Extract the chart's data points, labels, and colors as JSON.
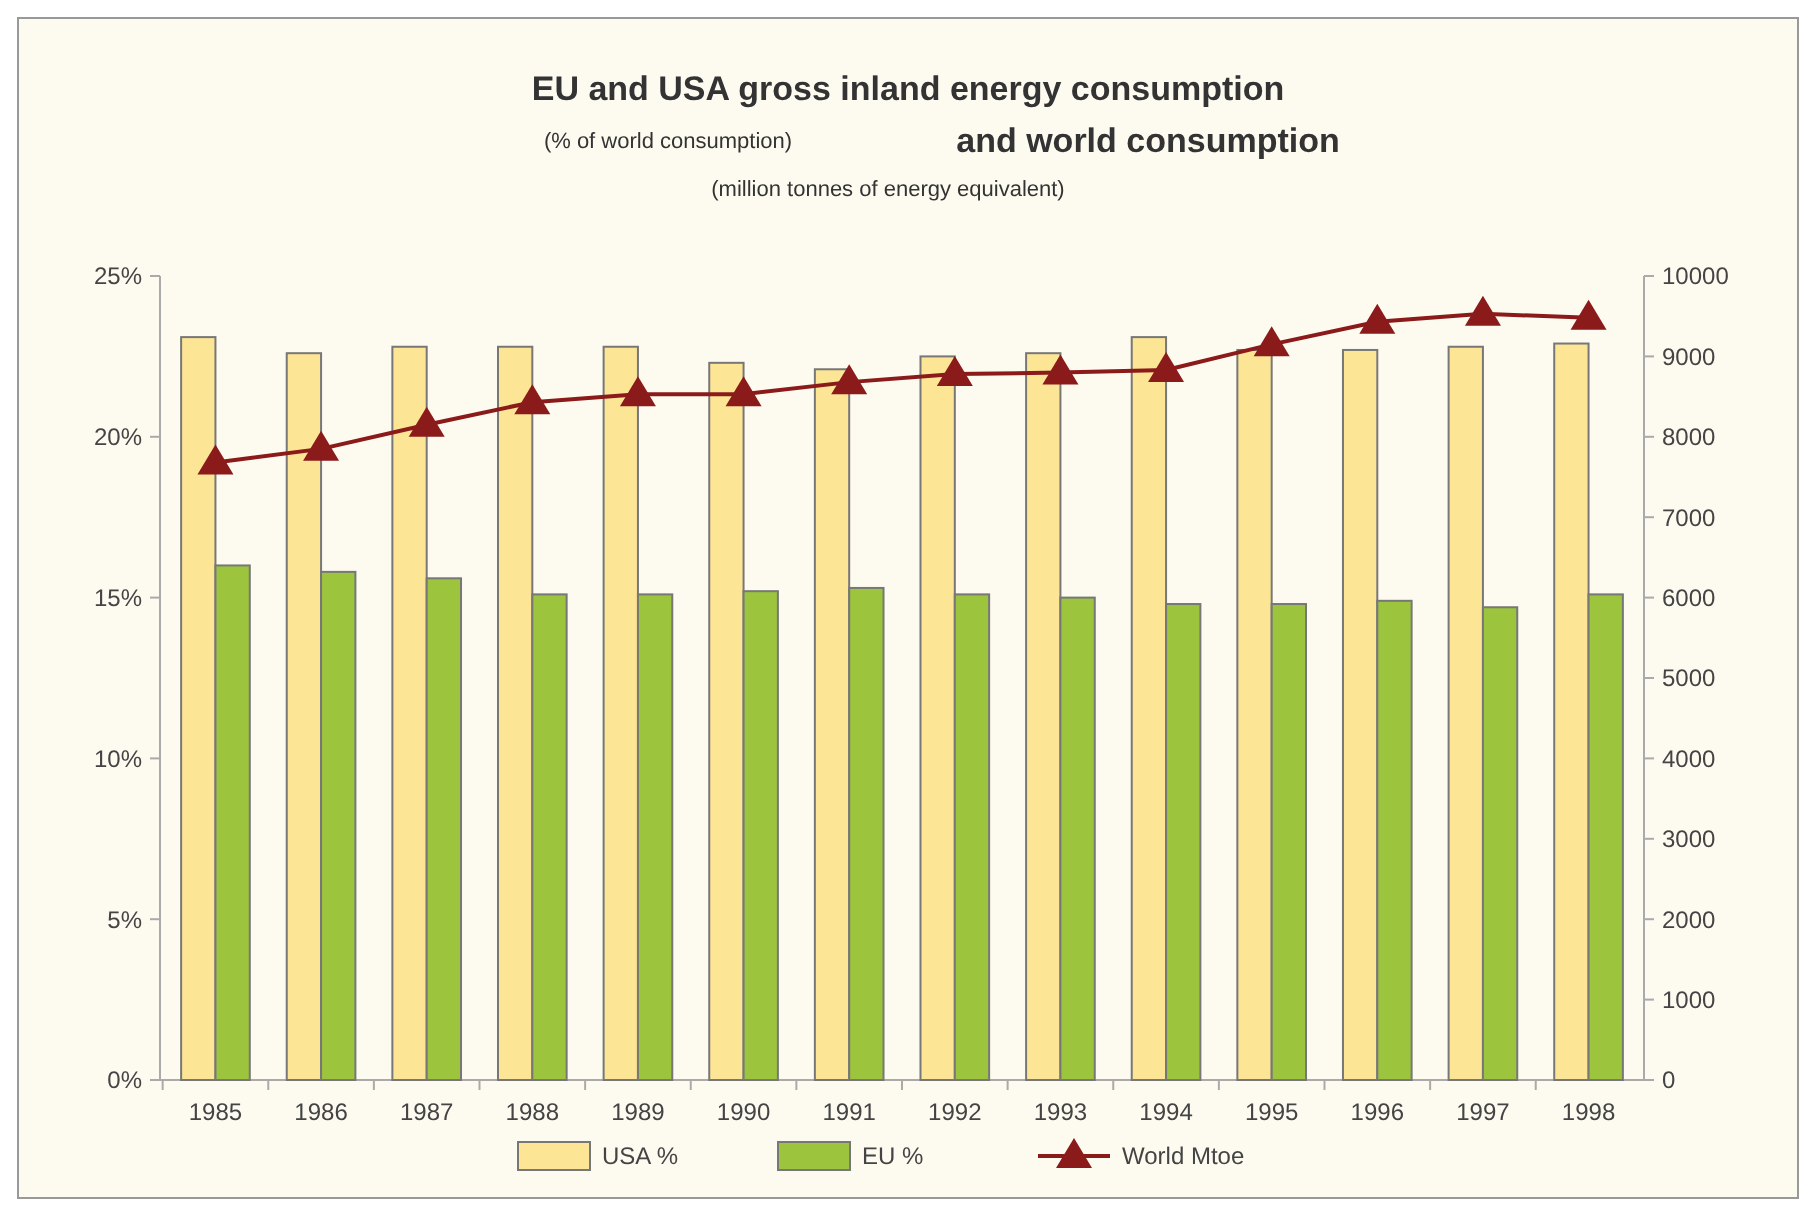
{
  "chart_data": {
    "type": "bar",
    "title": "EU and USA gross inland energy consumption",
    "subtitle": [
      "(% of world consumption)",
      "and world consumption",
      "(million tonnes of energy equivalent)"
    ],
    "categories": [
      "1985",
      "1986",
      "1987",
      "1988",
      "1989",
      "1990",
      "1991",
      "1992",
      "1993",
      "1994",
      "1995",
      "1996",
      "1997",
      "1998"
    ],
    "series": [
      {
        "name": "USA %",
        "color": "#fde596",
        "values": [
          23.1,
          22.6,
          22.8,
          22.8,
          22.8,
          22.3,
          22.1,
          22.5,
          22.6,
          23.1,
          22.7,
          22.7,
          22.8,
          22.9
        ]
      },
      {
        "name": "EU %",
        "color": "#9cc43c",
        "values": [
          16.0,
          15.8,
          15.6,
          15.1,
          15.1,
          15.2,
          15.3,
          15.1,
          15.0,
          14.8,
          14.8,
          14.9,
          14.7,
          15.1
        ]
      },
      {
        "name": "World Mtoe",
        "type": "line",
        "axis": "y2",
        "color": "#8b1a1a",
        "marker": "triangle",
        "values": [
          7680,
          7850,
          8150,
          8430,
          8530,
          8530,
          8680,
          8780,
          8800,
          8830,
          9150,
          9430,
          9530,
          9480
        ]
      }
    ],
    "ylim": [
      0,
      25
    ],
    "yticks": [
      {
        "value": 0,
        "label": "0%"
      },
      {
        "value": 5,
        "label": "5%"
      },
      {
        "value": 10,
        "label": "10%"
      },
      {
        "value": 15,
        "label": "15%"
      },
      {
        "value": 20,
        "label": "20%"
      },
      {
        "value": 25,
        "label": "25%"
      }
    ],
    "y2lim": [
      0,
      10000
    ],
    "y2ticks": [
      0,
      1000,
      2000,
      3000,
      4000,
      5000,
      6000,
      7000,
      8000,
      9000,
      10000
    ],
    "grid": false,
    "legend": "bottom"
  }
}
